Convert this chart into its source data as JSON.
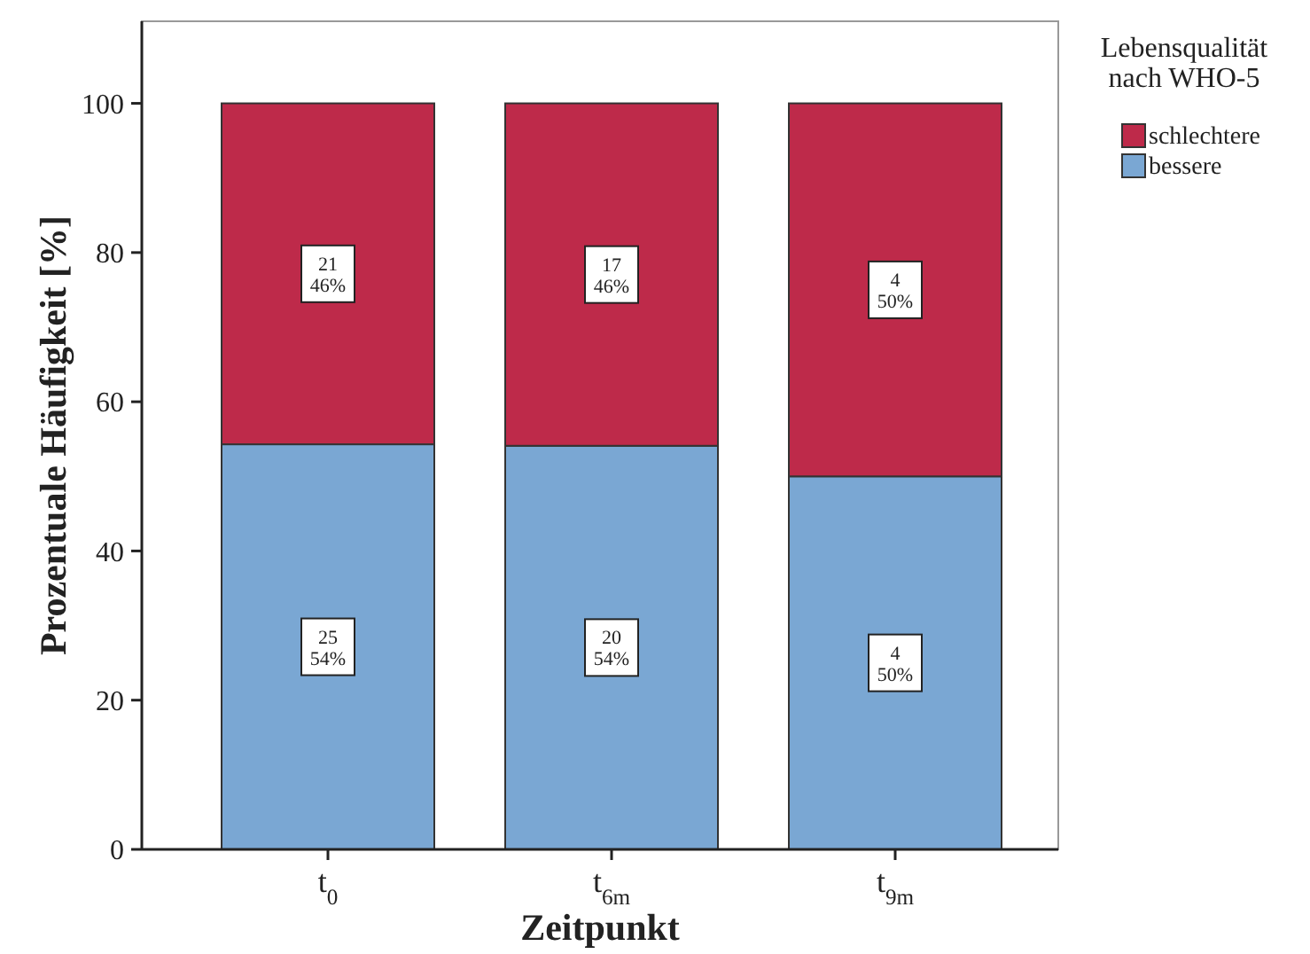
{
  "chart_data": {
    "type": "bar",
    "stacked": true,
    "xlabel": "Zeitpunkt",
    "ylabel": "Prozentuale Häufigkeit [%]",
    "legend_title": "Lebensqualität nach WHO-5",
    "legend": "top right",
    "grid": false,
    "categories": [
      "t$_{0}$",
      "t$_{6m}$",
      "t$_{9m}$"
    ],
    "ylim": [
      0,
      111
    ],
    "yticks": [
      0,
      20,
      40,
      60,
      80,
      100
    ],
    "series": [
      {
        "name": "bessere",
        "color": "#7aa7d3",
        "values": [
          54.3,
          54.1,
          50
        ],
        "value_labels": [
          "25\n54%",
          "20\n54%",
          "4\n50%"
        ]
      },
      {
        "name": "schlechtere",
        "color": "#be2a4a",
        "values": [
          45.7,
          45.9,
          50
        ],
        "value_labels": [
          "21\n46%",
          "17\n46%",
          "4\n50%"
        ]
      }
    ]
  }
}
